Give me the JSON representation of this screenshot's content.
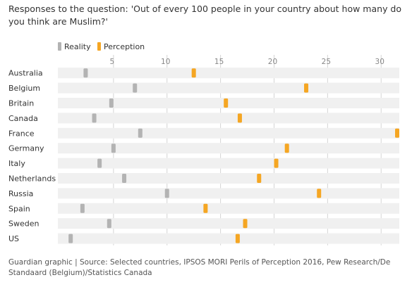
{
  "subtitle": "Responses to the question: 'Out of every 100 people in your country about how many do you think are Muslim?'",
  "footer": "Guardian graphic | Source: Selected countries, IPSOS MORI Perils of Perception 2016, Pew Research/De Standaard (Belgium)/Statistics Canada",
  "colors": {
    "reality": "#b3b3b3",
    "perception": "#f5a623",
    "track": "#f0f0f0",
    "grid": "#d4d4d4"
  },
  "chart_data": {
    "type": "dot",
    "categories": [
      "Australia",
      "Belgium",
      "Britain",
      "Canada",
      "France",
      "Germany",
      "Italy",
      "Netherlands",
      "Russia",
      "Spain",
      "Sweden",
      "US"
    ],
    "series": [
      {
        "name": "Reality",
        "values": [
          2.4,
          7,
          4.8,
          3.2,
          7.5,
          5,
          3.7,
          6,
          10,
          2.1,
          4.6,
          1
        ]
      },
      {
        "name": "Perception",
        "values": [
          12.5,
          23,
          15.5,
          16.8,
          31.5,
          21.2,
          20.2,
          18.6,
          24.2,
          13.6,
          17.3,
          16.6
        ]
      }
    ],
    "xticks": [
      5,
      10,
      15,
      20,
      25,
      30
    ],
    "xlim": [
      0,
      31.5
    ],
    "grid": true,
    "legend": "top-left"
  }
}
